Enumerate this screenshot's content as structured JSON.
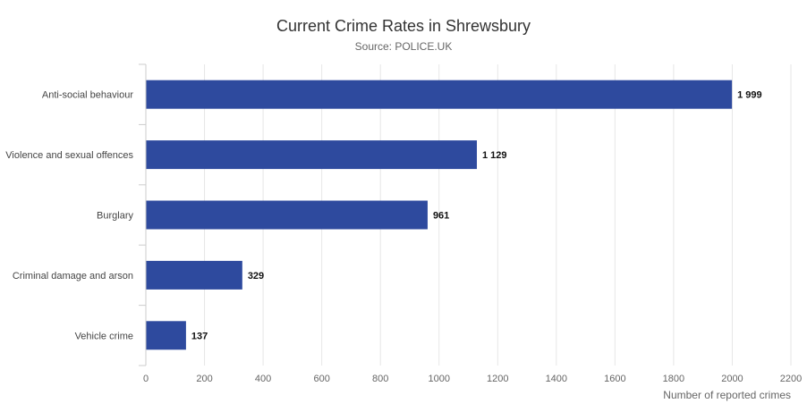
{
  "chart_data": {
    "type": "bar",
    "orientation": "horizontal",
    "title": "Current Crime Rates in Shrewsbury",
    "subtitle": "Source: POLICE.UK",
    "categories": [
      "Anti-social behaviour",
      "Violence and sexual offences",
      "Burglary",
      "Criminal damage and arson",
      "Vehicle crime"
    ],
    "values": [
      1999,
      1129,
      961,
      329,
      137
    ],
    "value_labels": [
      "1 999",
      "1 129",
      "961",
      "329",
      "137"
    ],
    "xlabel": "Number of reported crimes",
    "ylabel": "",
    "xlim": [
      0,
      2200
    ],
    "xticks": [
      0,
      200,
      400,
      600,
      800,
      1000,
      1200,
      1400,
      1600,
      1800,
      2000,
      2200
    ],
    "grid": true,
    "bar_color": "#2e4a9e",
    "grid_color": "#e6e6e6"
  }
}
